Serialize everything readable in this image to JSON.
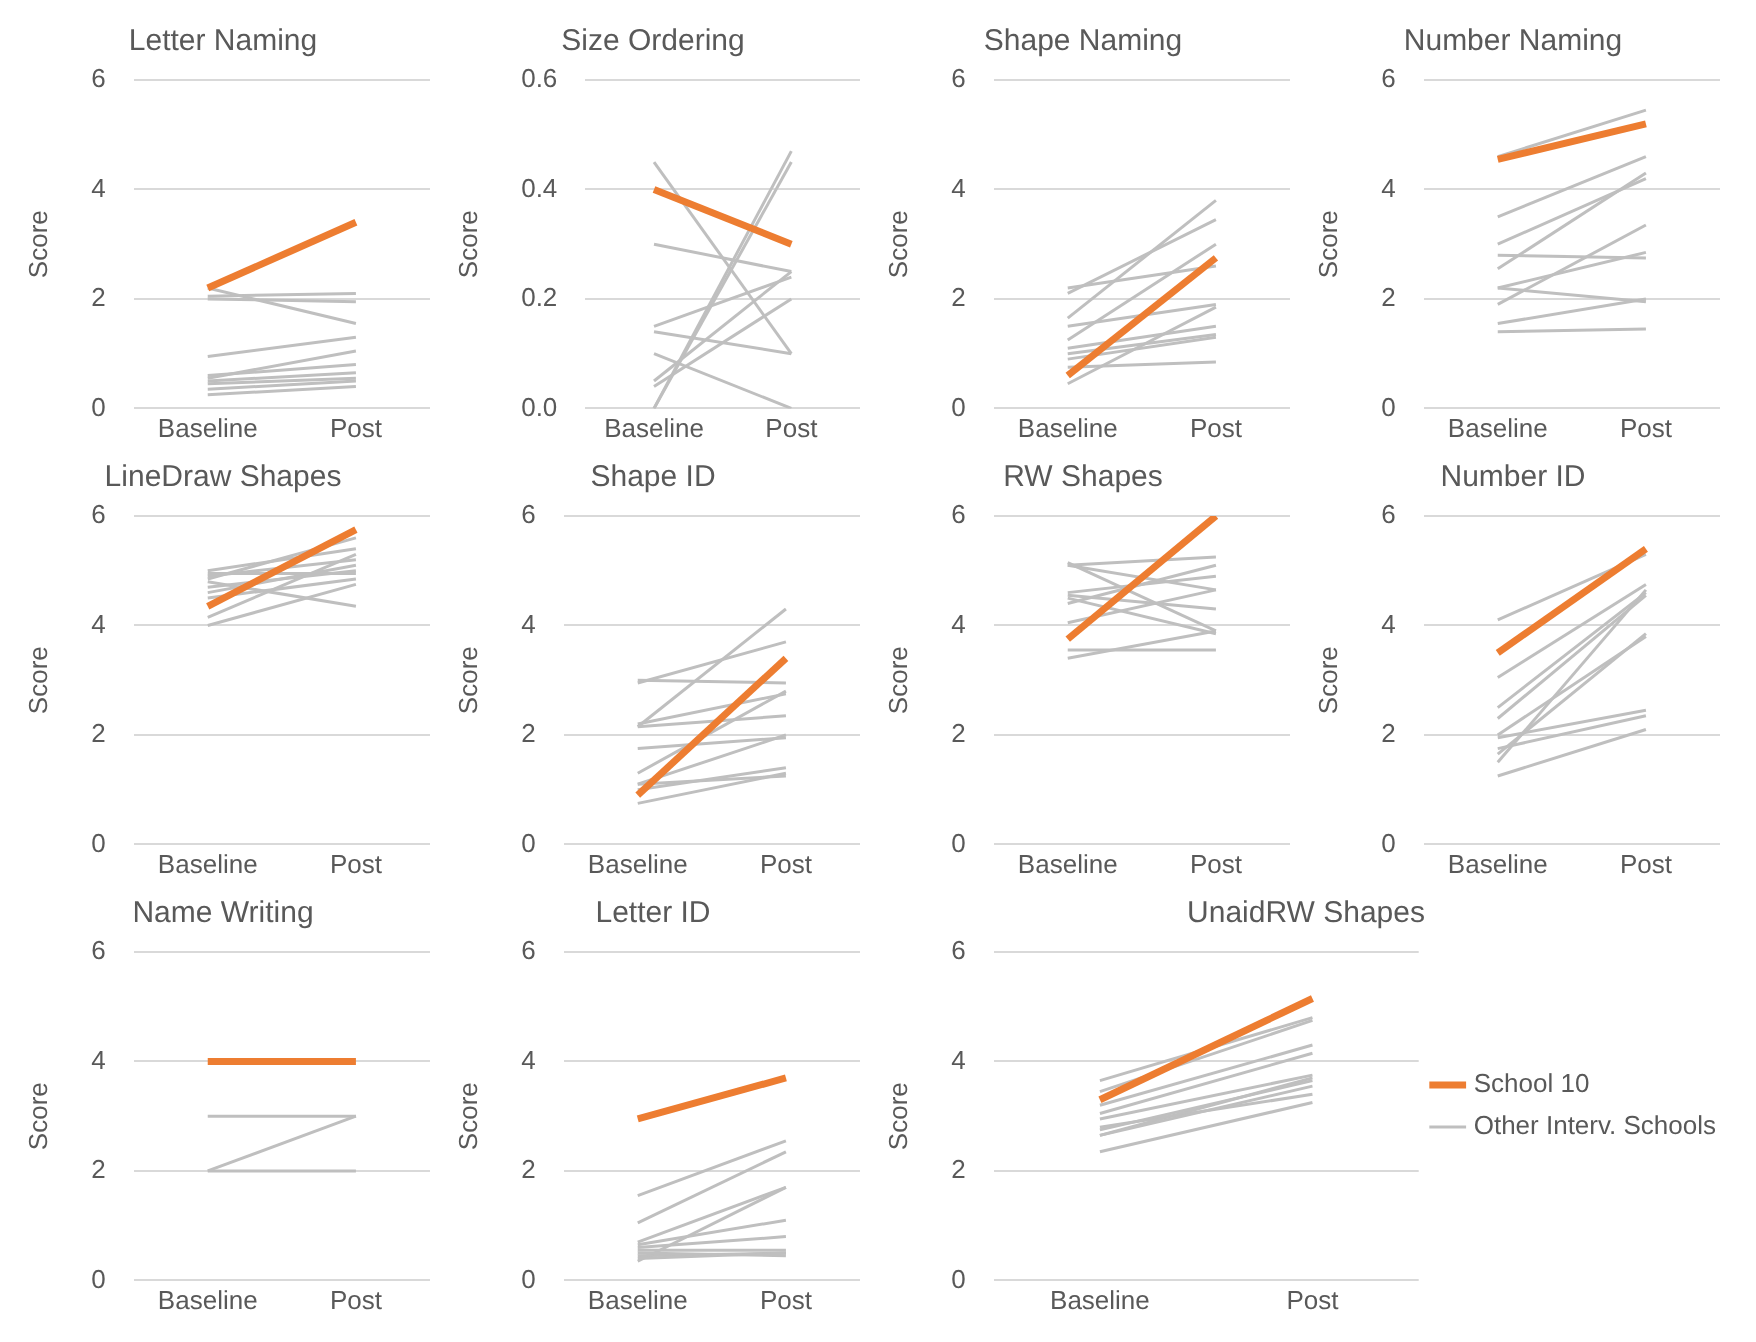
{
  "chart_data": [
    {
      "type": "line",
      "title": "Letter Naming",
      "ylabel": "Score",
      "categories": [
        "Baseline",
        "Post"
      ],
      "ylim": [
        0,
        6
      ],
      "yticks": [
        0,
        2,
        4,
        6
      ],
      "grid": "y",
      "marker": "none",
      "legend": false,
      "series": [
        {
          "color": "#ed7d31",
          "values": [
            2.2,
            3.4
          ]
        },
        {
          "color": "#bfbfbf",
          "values": [
            2.2,
            1.55
          ]
        },
        {
          "color": "#bfbfbf",
          "values": [
            2.05,
            2.1
          ]
        },
        {
          "color": "#bfbfbf",
          "values": [
            2.0,
            1.95
          ]
        },
        {
          "color": "#bfbfbf",
          "values": [
            0.95,
            1.3
          ]
        },
        {
          "color": "#bfbfbf",
          "values": [
            0.55,
            1.05
          ]
        },
        {
          "color": "#bfbfbf",
          "values": [
            0.6,
            0.8
          ]
        },
        {
          "color": "#bfbfbf",
          "values": [
            0.5,
            0.65
          ]
        },
        {
          "color": "#bfbfbf",
          "values": [
            0.45,
            0.55
          ]
        },
        {
          "color": "#bfbfbf",
          "values": [
            0.35,
            0.5
          ]
        },
        {
          "color": "#bfbfbf",
          "values": [
            0.25,
            0.4
          ]
        }
      ]
    },
    {
      "type": "line",
      "title": "Size Ordering",
      "ylabel": "Score",
      "categories": [
        "Baseline",
        "Post"
      ],
      "ylim": [
        0,
        0.6
      ],
      "yticks": [
        {
          "value": 0,
          "label": "0.0"
        },
        0.2,
        0.4,
        0.6
      ],
      "grid": "y",
      "marker": "none",
      "legend": false,
      "series": [
        {
          "color": "#ed7d31",
          "values": [
            0.4,
            0.3
          ]
        },
        {
          "color": "#bfbfbf",
          "values": [
            0.45,
            0.1
          ]
        },
        {
          "color": "#bfbfbf",
          "values": [
            0.3,
            0.25
          ]
        },
        {
          "color": "#bfbfbf",
          "values": [
            0.15,
            0.24
          ]
        },
        {
          "color": "#bfbfbf",
          "values": [
            0.14,
            0.1
          ]
        },
        {
          "color": "#bfbfbf",
          "values": [
            0.1,
            0
          ]
        },
        {
          "color": "#bfbfbf",
          "values": [
            0.05,
            0.25
          ]
        },
        {
          "color": "#bfbfbf",
          "values": [
            0.04,
            0.2
          ]
        },
        {
          "color": "#bfbfbf",
          "values": [
            0,
            0.47
          ]
        },
        {
          "color": "#bfbfbf",
          "values": [
            0,
            0.45
          ]
        }
      ]
    },
    {
      "type": "line",
      "title": "Shape Naming",
      "ylabel": "Score",
      "categories": [
        "Baseline",
        "Post"
      ],
      "ylim": [
        0,
        6
      ],
      "yticks": [
        0,
        2,
        4,
        6
      ],
      "grid": "y",
      "marker": "none",
      "legend": false,
      "series": [
        {
          "color": "#ed7d31",
          "values": [
            0.6,
            2.75
          ]
        },
        {
          "color": "#bfbfbf",
          "values": [
            2.2,
            2.6
          ]
        },
        {
          "color": "#bfbfbf",
          "values": [
            2.1,
            3.45
          ]
        },
        {
          "color": "#bfbfbf",
          "values": [
            1.65,
            3.8
          ]
        },
        {
          "color": "#bfbfbf",
          "values": [
            1.5,
            1.9
          ]
        },
        {
          "color": "#bfbfbf",
          "values": [
            1.25,
            3.0
          ]
        },
        {
          "color": "#bfbfbf",
          "values": [
            1.1,
            1.5
          ]
        },
        {
          "color": "#bfbfbf",
          "values": [
            1.0,
            1.35
          ]
        },
        {
          "color": "#bfbfbf",
          "values": [
            0.9,
            1.3
          ]
        },
        {
          "color": "#bfbfbf",
          "values": [
            0.75,
            0.85
          ]
        },
        {
          "color": "#bfbfbf",
          "values": [
            0.45,
            1.85
          ]
        }
      ]
    },
    {
      "type": "line",
      "title": "Number Naming",
      "ylabel": "Score",
      "categories": [
        "Baseline",
        "Post"
      ],
      "ylim": [
        0,
        6
      ],
      "yticks": [
        0,
        2,
        4,
        6
      ],
      "grid": "y",
      "marker": "none",
      "legend": false,
      "series": [
        {
          "color": "#ed7d31",
          "values": [
            4.55,
            5.2
          ]
        },
        {
          "color": "#bfbfbf",
          "values": [
            4.6,
            5.45
          ]
        },
        {
          "color": "#bfbfbf",
          "values": [
            3.5,
            4.6
          ]
        },
        {
          "color": "#bfbfbf",
          "values": [
            3.0,
            4.2
          ]
        },
        {
          "color": "#bfbfbf",
          "values": [
            2.55,
            4.3
          ]
        },
        {
          "color": "#bfbfbf",
          "values": [
            2.8,
            2.75
          ]
        },
        {
          "color": "#bfbfbf",
          "values": [
            2.2,
            2.85
          ]
        },
        {
          "color": "#bfbfbf",
          "values": [
            2.2,
            1.95
          ]
        },
        {
          "color": "#bfbfbf",
          "values": [
            1.9,
            3.35
          ]
        },
        {
          "color": "#bfbfbf",
          "values": [
            1.55,
            2.0
          ]
        },
        {
          "color": "#bfbfbf",
          "values": [
            1.4,
            1.45
          ]
        }
      ]
    },
    {
      "type": "line",
      "title": "LineDraw Shapes",
      "ylabel": "Score",
      "categories": [
        "Baseline",
        "Post"
      ],
      "ylim": [
        0,
        6
      ],
      "yticks": [
        0,
        2,
        4,
        6
      ],
      "grid": "y",
      "marker": "none",
      "legend": false,
      "series": [
        {
          "color": "#ed7d31",
          "values": [
            4.35,
            5.75
          ]
        },
        {
          "color": "#bfbfbf",
          "values": [
            5.0,
            5.4
          ]
        },
        {
          "color": "#bfbfbf",
          "values": [
            4.95,
            4.95
          ]
        },
        {
          "color": "#bfbfbf",
          "values": [
            4.9,
            5.2
          ]
        },
        {
          "color": "#bfbfbf",
          "values": [
            4.85,
            5.6
          ]
        },
        {
          "color": "#bfbfbf",
          "values": [
            4.8,
            4.35
          ]
        },
        {
          "color": "#bfbfbf",
          "values": [
            4.7,
            5.0
          ]
        },
        {
          "color": "#bfbfbf",
          "values": [
            4.6,
            5.1
          ]
        },
        {
          "color": "#bfbfbf",
          "values": [
            4.5,
            4.85
          ]
        },
        {
          "color": "#bfbfbf",
          "values": [
            4.15,
            5.3
          ]
        },
        {
          "color": "#bfbfbf",
          "values": [
            4.0,
            4.75
          ]
        }
      ]
    },
    {
      "type": "line",
      "title": "Shape ID",
      "ylabel": "Score",
      "categories": [
        "Baseline",
        "Post"
      ],
      "ylim": [
        0,
        6
      ],
      "yticks": [
        0,
        2,
        4,
        6
      ],
      "grid": "y",
      "marker": "none",
      "legend": false,
      "series": [
        {
          "color": "#ed7d31",
          "values": [
            0.9,
            3.4
          ]
        },
        {
          "color": "#bfbfbf",
          "values": [
            3.0,
            2.95
          ]
        },
        {
          "color": "#bfbfbf",
          "values": [
            2.95,
            3.7
          ]
        },
        {
          "color": "#bfbfbf",
          "values": [
            2.2,
            2.75
          ]
        },
        {
          "color": "#bfbfbf",
          "values": [
            2.15,
            2.35
          ]
        },
        {
          "color": "#bfbfbf",
          "values": [
            2.15,
            4.3
          ]
        },
        {
          "color": "#bfbfbf",
          "values": [
            1.75,
            1.95
          ]
        },
        {
          "color": "#bfbfbf",
          "values": [
            1.3,
            2.8
          ]
        },
        {
          "color": "#bfbfbf",
          "values": [
            1.1,
            2.0
          ]
        },
        {
          "color": "#bfbfbf",
          "values": [
            1.0,
            1.4
          ]
        },
        {
          "color": "#bfbfbf",
          "values": [
            1.1,
            1.25
          ]
        },
        {
          "color": "#bfbfbf",
          "values": [
            0.75,
            1.3
          ]
        }
      ]
    },
    {
      "type": "line",
      "title": "RW Shapes",
      "ylabel": "Score",
      "categories": [
        "Baseline",
        "Post"
      ],
      "ylim": [
        0,
        6
      ],
      "yticks": [
        0,
        2,
        4,
        6
      ],
      "grid": "y",
      "marker": "none",
      "legend": false,
      "series": [
        {
          "color": "#ed7d31",
          "values": [
            3.75,
            6.0
          ]
        },
        {
          "color": "#bfbfbf",
          "values": [
            5.1,
            5.25
          ]
        },
        {
          "color": "#bfbfbf",
          "values": [
            5.1,
            4.65
          ]
        },
        {
          "color": "#bfbfbf",
          "values": [
            5.15,
            3.9
          ]
        },
        {
          "color": "#bfbfbf",
          "values": [
            4.6,
            4.9
          ]
        },
        {
          "color": "#bfbfbf",
          "values": [
            4.55,
            4.3
          ]
        },
        {
          "color": "#bfbfbf",
          "values": [
            4.4,
            5.1
          ]
        },
        {
          "color": "#bfbfbf",
          "values": [
            4.05,
            4.65
          ]
        },
        {
          "color": "#bfbfbf",
          "values": [
            4.5,
            3.85
          ]
        },
        {
          "color": "#bfbfbf",
          "values": [
            3.55,
            3.55
          ]
        },
        {
          "color": "#bfbfbf",
          "values": [
            3.4,
            3.9
          ]
        }
      ]
    },
    {
      "type": "line",
      "title": "Number ID",
      "ylabel": "Score",
      "categories": [
        "Baseline",
        "Post"
      ],
      "ylim": [
        0,
        6
      ],
      "yticks": [
        0,
        2,
        4,
        6
      ],
      "grid": "y",
      "marker": "none",
      "legend": false,
      "series": [
        {
          "color": "#ed7d31",
          "values": [
            3.5,
            5.4
          ]
        },
        {
          "color": "#bfbfbf",
          "values": [
            4.1,
            5.3
          ]
        },
        {
          "color": "#bfbfbf",
          "values": [
            3.05,
            4.75
          ]
        },
        {
          "color": "#bfbfbf",
          "values": [
            2.5,
            4.6
          ]
        },
        {
          "color": "#bfbfbf",
          "values": [
            2.3,
            4.55
          ]
        },
        {
          "color": "#bfbfbf",
          "values": [
            2.0,
            3.8
          ]
        },
        {
          "color": "#bfbfbf",
          "values": [
            1.95,
            2.45
          ]
        },
        {
          "color": "#bfbfbf",
          "values": [
            1.75,
            2.35
          ]
        },
        {
          "color": "#bfbfbf",
          "values": [
            1.5,
            4.65
          ]
        },
        {
          "color": "#bfbfbf",
          "values": [
            1.65,
            3.85
          ]
        },
        {
          "color": "#bfbfbf",
          "values": [
            1.25,
            2.1
          ]
        }
      ]
    },
    {
      "type": "line",
      "title": "Name Writing",
      "ylabel": "Score",
      "categories": [
        "Baseline",
        "Post"
      ],
      "ylim": [
        0,
        6
      ],
      "yticks": [
        0,
        2,
        4,
        6
      ],
      "grid": "y",
      "marker": "none",
      "legend": false,
      "series": [
        {
          "color": "#ed7d31",
          "values": [
            4,
            4
          ]
        },
        {
          "color": "#bfbfbf",
          "values": [
            3,
            3
          ]
        },
        {
          "color": "#bfbfbf",
          "values": [
            2,
            3
          ]
        },
        {
          "color": "#bfbfbf",
          "values": [
            2,
            2
          ]
        }
      ]
    },
    {
      "type": "line",
      "title": "Letter ID",
      "ylabel": "Score",
      "categories": [
        "Baseline",
        "Post"
      ],
      "ylim": [
        0,
        6
      ],
      "yticks": [
        0,
        2,
        4,
        6
      ],
      "grid": "y",
      "marker": "none",
      "legend": false,
      "series": [
        {
          "color": "#ed7d31",
          "values": [
            2.95,
            3.7
          ]
        },
        {
          "color": "#bfbfbf",
          "values": [
            1.55,
            2.55
          ]
        },
        {
          "color": "#bfbfbf",
          "values": [
            1.05,
            2.35
          ]
        },
        {
          "color": "#bfbfbf",
          "values": [
            0.7,
            1.7
          ]
        },
        {
          "color": "#bfbfbf",
          "values": [
            0.65,
            1.1
          ]
        },
        {
          "color": "#bfbfbf",
          "values": [
            0.6,
            0.8
          ]
        },
        {
          "color": "#bfbfbf",
          "values": [
            0.55,
            0.55
          ]
        },
        {
          "color": "#bfbfbf",
          "values": [
            0.5,
            0.45
          ]
        },
        {
          "color": "#bfbfbf",
          "values": [
            0.4,
            0.5
          ]
        },
        {
          "color": "#bfbfbf",
          "values": [
            0.35,
            1.7
          ]
        },
        {
          "color": "#bfbfbf",
          "values": [
            0.45,
            0.5
          ]
        }
      ]
    },
    {
      "type": "line",
      "title": "UnaidRW Shapes",
      "ylabel": "Score",
      "categories": [
        "Baseline",
        "Post"
      ],
      "ylim": [
        0,
        6
      ],
      "yticks": [
        0,
        2,
        4,
        6
      ],
      "grid": "y",
      "marker": "none",
      "legend": "right",
      "series": [
        {
          "name": "School 10",
          "color": "#ed7d31",
          "values": [
            3.3,
            5.15
          ]
        },
        {
          "name": "Other Interv. Schools",
          "color": "#bfbfbf",
          "values": [
            3.65,
            4.8
          ]
        },
        {
          "color": "#bfbfbf",
          "values": [
            3.45,
            4.75
          ]
        },
        {
          "color": "#bfbfbf",
          "values": [
            3.2,
            4.3
          ]
        },
        {
          "color": "#bfbfbf",
          "values": [
            3.05,
            4.15
          ]
        },
        {
          "color": "#bfbfbf",
          "values": [
            2.95,
            3.75
          ]
        },
        {
          "color": "#bfbfbf",
          "values": [
            2.75,
            3.65
          ]
        },
        {
          "color": "#bfbfbf",
          "values": [
            2.65,
            3.55
          ]
        },
        {
          "color": "#bfbfbf",
          "values": [
            2.65,
            3.7
          ]
        },
        {
          "color": "#bfbfbf",
          "values": [
            2.8,
            3.4
          ]
        },
        {
          "color": "#bfbfbf",
          "values": [
            2.35,
            3.25
          ]
        }
      ]
    }
  ]
}
